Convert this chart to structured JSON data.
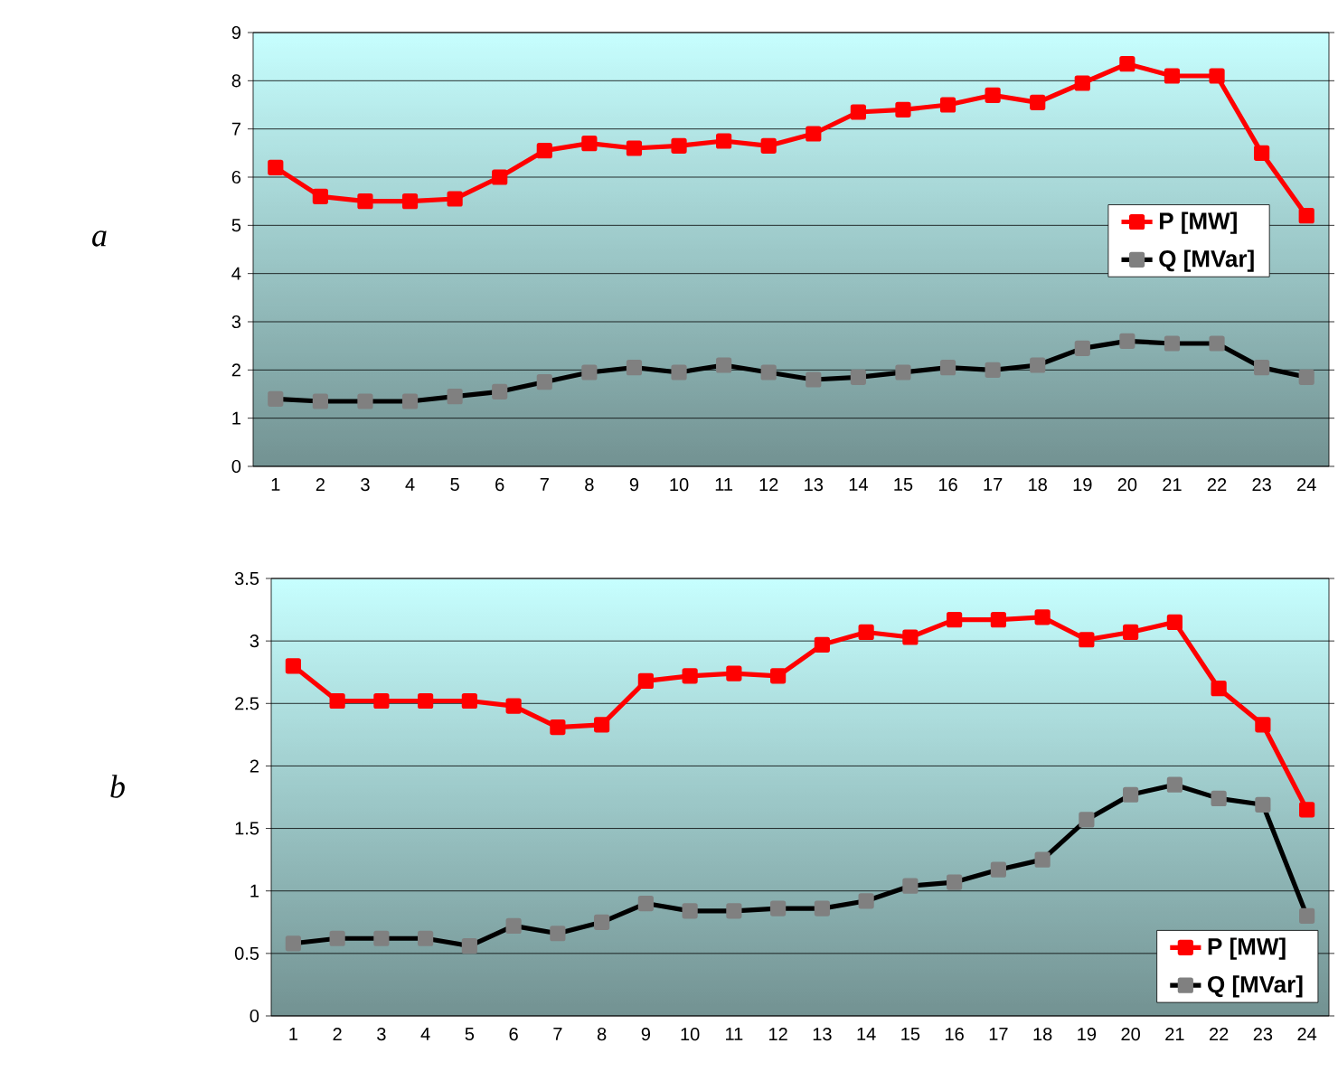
{
  "chart_data": [
    {
      "type": "line",
      "title": "a",
      "categories": [
        "1",
        "2",
        "3",
        "4",
        "5",
        "6",
        "7",
        "8",
        "9",
        "10",
        "11",
        "12",
        "13",
        "14",
        "15",
        "16",
        "17",
        "18",
        "19",
        "20",
        "21",
        "22",
        "23",
        "24"
      ],
      "series": [
        {
          "name": "P [MW]",
          "color": "#ff0000",
          "values": [
            6.2,
            5.6,
            5.5,
            5.5,
            5.55,
            6.0,
            6.55,
            6.7,
            6.6,
            6.65,
            6.75,
            6.65,
            6.9,
            7.35,
            7.4,
            7.5,
            7.7,
            7.55,
            7.95,
            8.35,
            8.1,
            8.1,
            6.5,
            5.2
          ]
        },
        {
          "name": "Q [MVar]",
          "color": "#000000",
          "values": [
            1.4,
            1.35,
            1.35,
            1.35,
            1.45,
            1.55,
            1.75,
            1.95,
            2.05,
            1.95,
            2.1,
            1.95,
            1.8,
            1.85,
            1.95,
            2.05,
            2.0,
            2.1,
            2.45,
            2.6,
            2.55,
            2.55,
            2.05,
            1.85
          ]
        }
      ],
      "ylim": [
        0,
        9
      ],
      "yticks": [
        0,
        1,
        2,
        3,
        4,
        5,
        6,
        7,
        8,
        9
      ],
      "grid": "y",
      "legend": "right",
      "marker": "square",
      "line_style": "solid"
    },
    {
      "type": "line",
      "title": "b",
      "categories": [
        "1",
        "2",
        "3",
        "4",
        "5",
        "6",
        "7",
        "8",
        "9",
        "10",
        "11",
        "12",
        "13",
        "14",
        "15",
        "16",
        "17",
        "18",
        "19",
        "20",
        "21",
        "22",
        "23",
        "24"
      ],
      "series": [
        {
          "name": "P [MW]",
          "color": "#ff0000",
          "values": [
            2.8,
            2.52,
            2.52,
            2.52,
            2.52,
            2.48,
            2.31,
            2.33,
            2.68,
            2.72,
            2.74,
            2.72,
            2.97,
            3.07,
            3.03,
            3.17,
            3.17,
            3.19,
            3.01,
            3.07,
            3.15,
            2.62,
            2.33,
            1.65
          ]
        },
        {
          "name": "Q [MVar]",
          "color": "#000000",
          "values": [
            0.58,
            0.62,
            0.62,
            0.62,
            0.56,
            0.72,
            0.66,
            0.75,
            0.9,
            0.84,
            0.84,
            0.86,
            0.86,
            0.92,
            1.04,
            1.07,
            1.17,
            1.25,
            1.57,
            1.77,
            1.85,
            1.74,
            1.69,
            0.8
          ]
        }
      ],
      "ylim": [
        0,
        3.5
      ],
      "yticks": [
        0,
        0.5,
        1,
        1.5,
        2,
        2.5,
        3,
        3.5
      ],
      "grid": "y",
      "legend": "bottom right",
      "marker": "square",
      "line_style": "solid"
    }
  ]
}
